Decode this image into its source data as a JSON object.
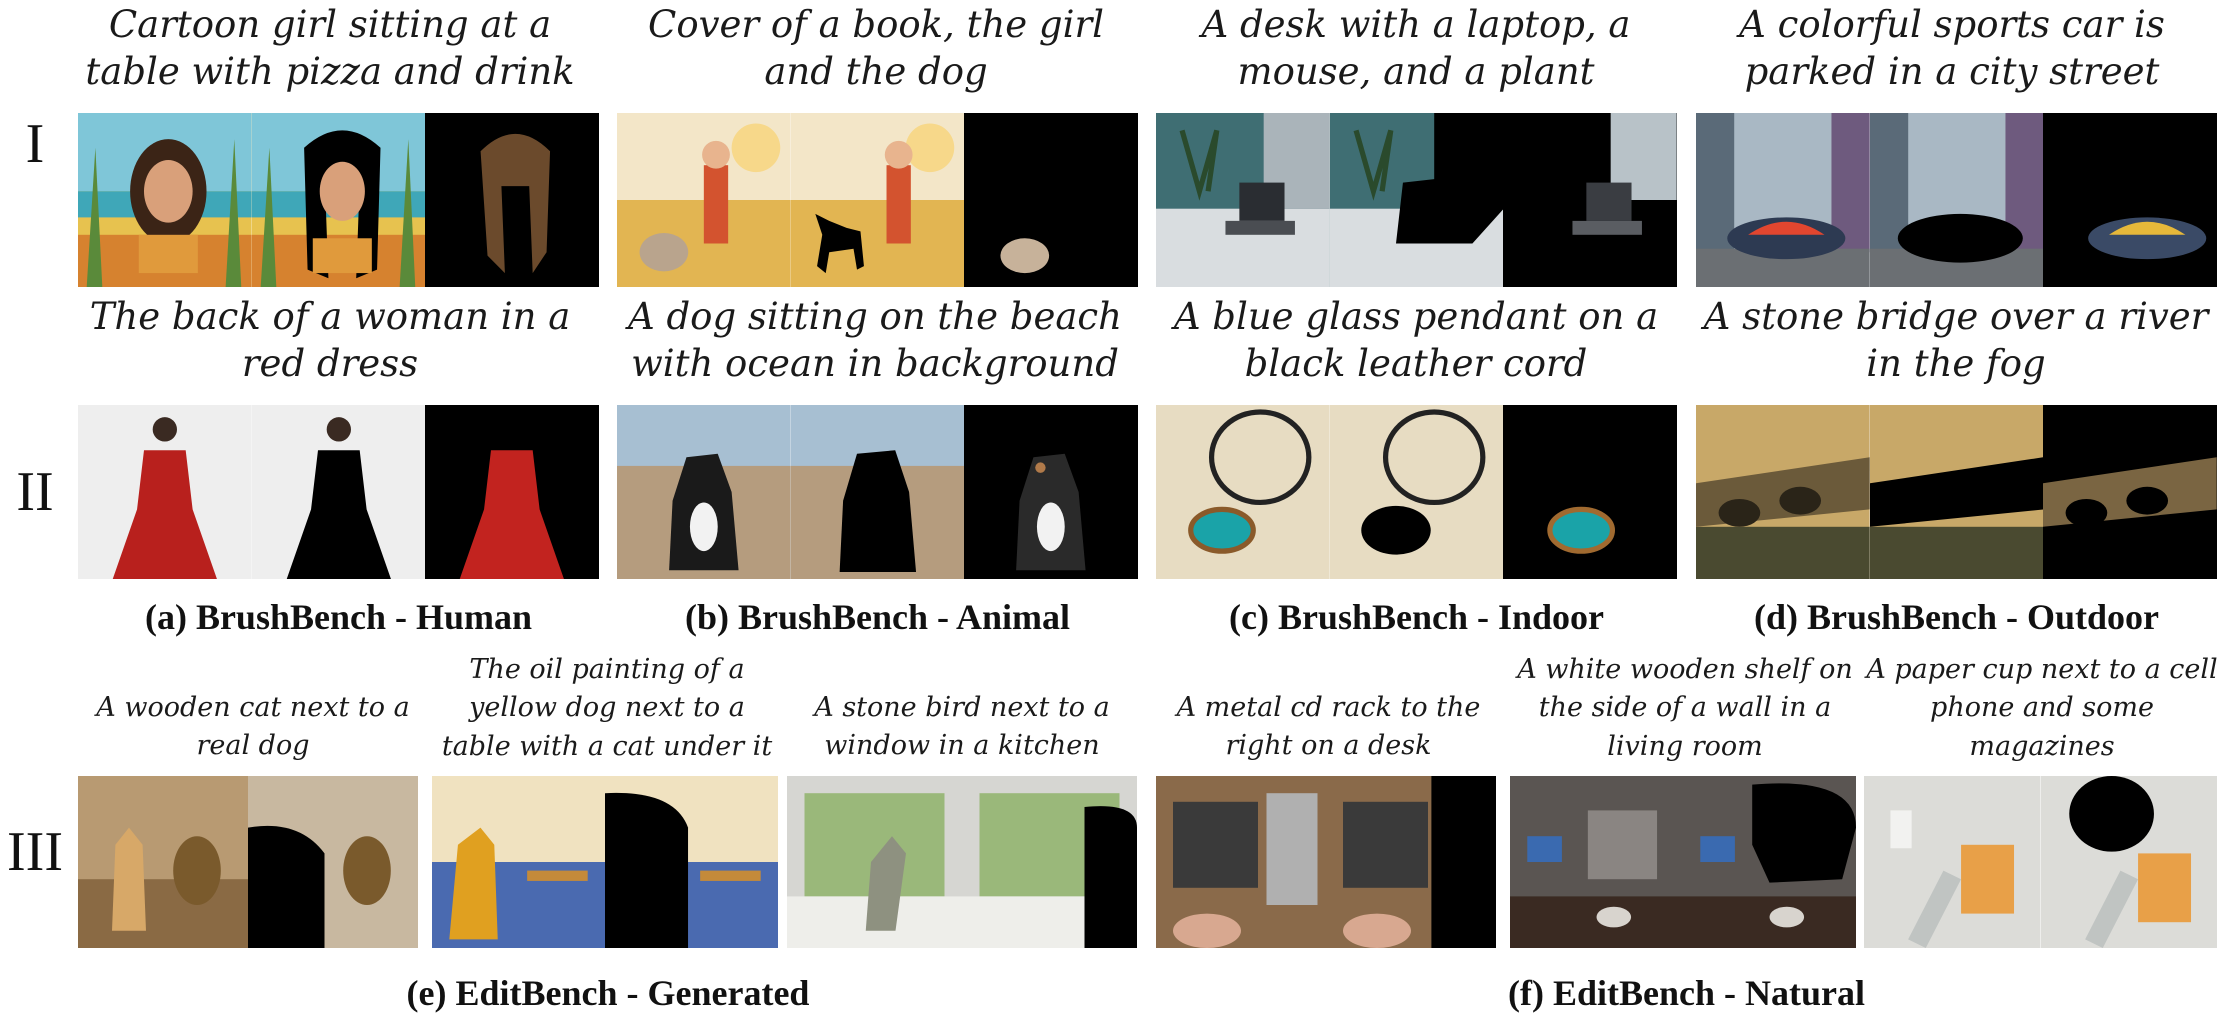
{
  "row_labels": [
    "I",
    "II",
    "III"
  ],
  "captions": {
    "row1": [
      "Cartoon girl sitting at a\ntable with pizza and drink",
      "Cover of a book, the girl\nand the dog",
      "A desk with a laptop, a\nmouse, and a plant",
      "A colorful sports car is\nparked in a city street"
    ],
    "row2": [
      "The back of a woman in a\nred dress",
      "A dog sitting on the beach\nwith ocean in background",
      "A blue glass pendant on a\nblack leather cord",
      "A stone bridge over a river\nin the fog"
    ],
    "row3": [
      "A wooden cat next to a\nreal dog",
      "The oil painting of a\nyellow dog next to a\ntable with a cat under it",
      "A stone bird next to a\nwindow in a kitchen",
      "A metal cd rack to the\nright on a desk",
      "A white wooden shelf on\nthe side of a wall in a\nliving room",
      "A paper cup next to a cell\nphone and some\nmagazines"
    ]
  },
  "panel_titles": [
    "(a) BrushBench - Human",
    "(b) BrushBench - Animal",
    "(c) BrushBench - Indoor",
    "(d) BrushBench - Outdoor",
    "(e) EditBench - Generated",
    "(f) EditBench - Natural"
  ],
  "colors": {
    "background": "#ffffff",
    "mask": "#000000",
    "text": "#111111"
  }
}
